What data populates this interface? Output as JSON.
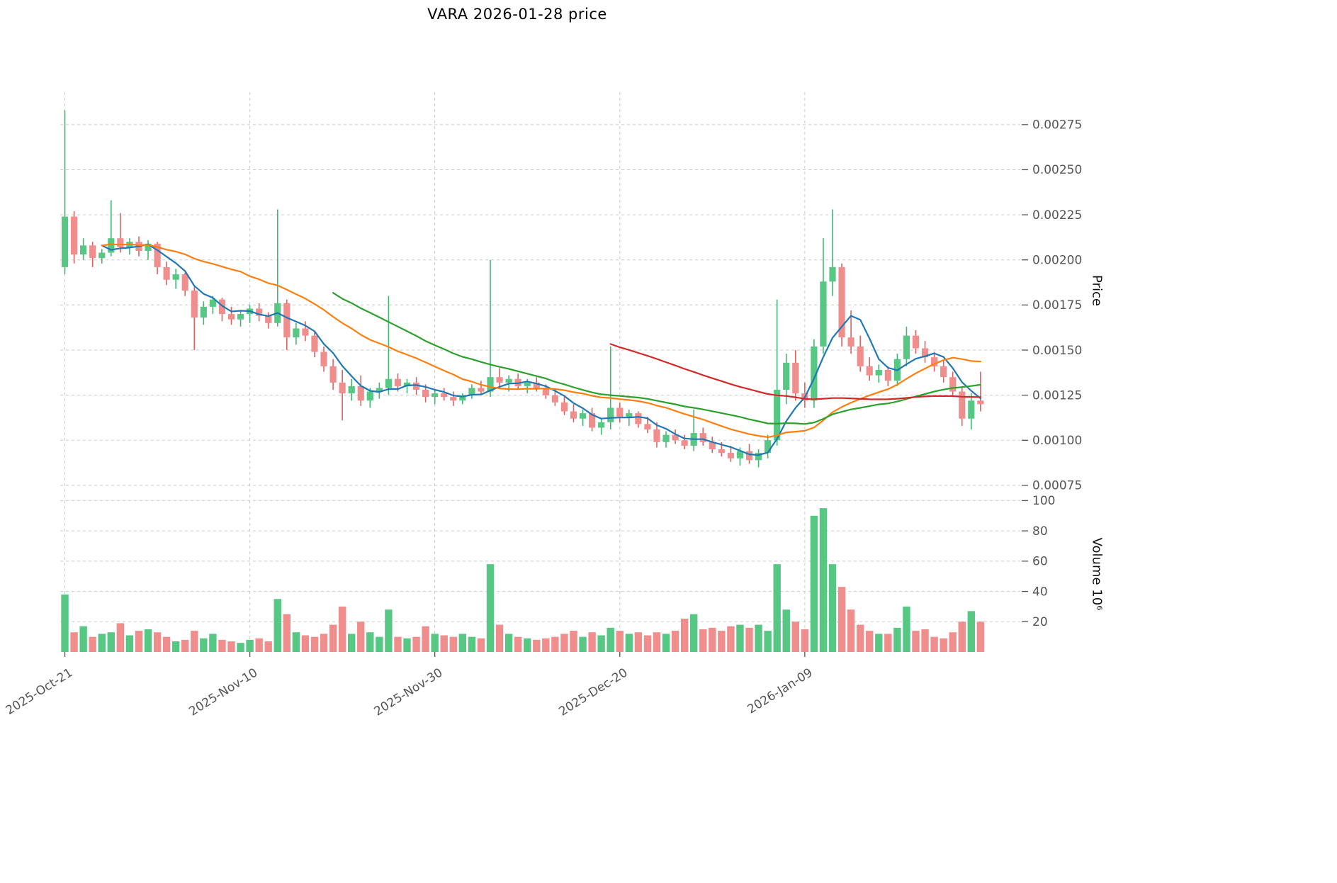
{
  "chart_data": {
    "type": "candlestick",
    "title": "VARA  2026-01-28  price",
    "ylabel": "Price",
    "ylabel2": "Volume  10⁶",
    "grid": true,
    "legend": "none",
    "xlim": [
      -0.5,
      103.3
    ],
    "ylim_price": [
      0.00073,
      0.00293
    ],
    "ylim_volume": [
      0,
      103
    ],
    "x_ticks": [
      {
        "index": 0,
        "label": "2025-Oct-21"
      },
      {
        "index": 20,
        "label": "2025-Nov-10"
      },
      {
        "index": 40,
        "label": "2025-Nov-30"
      },
      {
        "index": 60,
        "label": "2025-Dec-20"
      },
      {
        "index": 80,
        "label": "2026-Jan-09"
      }
    ],
    "y_ticks_price": [
      {
        "value": 0.00075,
        "label": "0.00075"
      },
      {
        "value": 0.001,
        "label": "0.00100"
      },
      {
        "value": 0.00125,
        "label": "0.00125"
      },
      {
        "value": 0.0015,
        "label": "0.00150"
      },
      {
        "value": 0.00175,
        "label": "0.00175"
      },
      {
        "value": 0.002,
        "label": "0.00200"
      },
      {
        "value": 0.00225,
        "label": "0.00225"
      },
      {
        "value": 0.0025,
        "label": "0.00250"
      },
      {
        "value": 0.00275,
        "label": "0.00275"
      }
    ],
    "y_ticks_volume": [
      {
        "value": 20,
        "label": "20"
      },
      {
        "value": 40,
        "label": "40"
      },
      {
        "value": 60,
        "label": "60"
      },
      {
        "value": 80,
        "label": "80"
      },
      {
        "value": 100,
        "label": "100"
      }
    ],
    "colors": {
      "up": "#57c784",
      "down": "#f08e8e",
      "wick_up": "#3fb873",
      "wick_down": "#e06060",
      "grid": "#c9c9c9",
      "tick_text": "#555555",
      "ma_fast": "#1f77b4",
      "ma_mid": "#ff7f0e",
      "ma_slow": "#2ca02c",
      "ma_long": "#d62728"
    },
    "moving_averages": [
      {
        "name": "ma-fast",
        "window": 5,
        "min_periods": 5,
        "color": "#1f77b4"
      },
      {
        "name": "ma-mid",
        "window": 20,
        "min_periods": 5,
        "color": "#ff7f0e"
      },
      {
        "name": "ma-slow",
        "window": 30,
        "min_periods": 30,
        "color": "#2ca02c"
      },
      {
        "name": "ma-long",
        "window": 60,
        "min_periods": 60,
        "color": "#d62728"
      }
    ],
    "candles": {
      "open": [
        0.00196,
        0.00224,
        0.00203,
        0.00208,
        0.00201,
        0.00204,
        0.00212,
        0.00207,
        0.0021,
        0.00205,
        0.00209,
        0.00196,
        0.00189,
        0.00192,
        0.00183,
        0.00168,
        0.00174,
        0.00178,
        0.0017,
        0.00167,
        0.0017,
        0.00173,
        0.00169,
        0.00165,
        0.00176,
        0.00157,
        0.00162,
        0.00158,
        0.00149,
        0.00141,
        0.00132,
        0.00126,
        0.0013,
        0.00122,
        0.00127,
        0.00129,
        0.00134,
        0.0013,
        0.00132,
        0.00128,
        0.00124,
        0.00126,
        0.00124,
        0.00122,
        0.00125,
        0.00129,
        0.00127,
        0.00135,
        0.00132,
        0.00134,
        0.0013,
        0.00132,
        0.00129,
        0.00125,
        0.00121,
        0.00116,
        0.00112,
        0.00115,
        0.00107,
        0.0011,
        0.00118,
        0.00113,
        0.00115,
        0.00109,
        0.00106,
        0.00099,
        0.00103,
        0.001,
        0.00097,
        0.00104,
        0.00099,
        0.00095,
        0.00093,
        0.0009,
        0.00094,
        0.00089,
        0.00093,
        0.001,
        0.00128,
        0.00143,
        0.00126,
        0.00122,
        0.00152,
        0.00188,
        0.00196,
        0.00157,
        0.00152,
        0.00141,
        0.00136,
        0.00139,
        0.00133,
        0.00145,
        0.00158,
        0.00151,
        0.00146,
        0.00141,
        0.00135,
        0.00127,
        0.00112,
        0.00122
      ],
      "high": [
        0.00283,
        0.00227,
        0.00212,
        0.0021,
        0.00206,
        0.00233,
        0.00226,
        0.00212,
        0.00213,
        0.00211,
        0.0021,
        0.00199,
        0.00195,
        0.00193,
        0.00185,
        0.00177,
        0.0018,
        0.00179,
        0.00174,
        0.00172,
        0.00175,
        0.00176,
        0.00171,
        0.00228,
        0.00178,
        0.00165,
        0.00166,
        0.0016,
        0.00152,
        0.00145,
        0.00139,
        0.00134,
        0.00136,
        0.00129,
        0.00132,
        0.0018,
        0.00137,
        0.00134,
        0.00135,
        0.00131,
        0.00128,
        0.00129,
        0.00127,
        0.00126,
        0.00131,
        0.00133,
        0.002,
        0.0014,
        0.00136,
        0.00137,
        0.00134,
        0.00135,
        0.00131,
        0.00128,
        0.00124,
        0.0012,
        0.00117,
        0.00118,
        0.00112,
        0.00152,
        0.00121,
        0.00117,
        0.00116,
        0.00113,
        0.0011,
        0.00105,
        0.00106,
        0.00103,
        0.00117,
        0.00107,
        0.00102,
        0.00099,
        0.00097,
        0.00096,
        0.00098,
        0.00095,
        0.00103,
        0.00178,
        0.00148,
        0.0015,
        0.00132,
        0.00156,
        0.00212,
        0.00228,
        0.00198,
        0.00172,
        0.00158,
        0.00146,
        0.00142,
        0.00141,
        0.00148,
        0.00163,
        0.00161,
        0.00155,
        0.00149,
        0.00144,
        0.00138,
        0.0013,
        0.00126,
        0.00138
      ],
      "low": [
        0.00192,
        0.00198,
        0.002,
        0.00196,
        0.00198,
        0.00202,
        0.00204,
        0.00203,
        0.00202,
        0.002,
        0.00192,
        0.00186,
        0.00184,
        0.0018,
        0.0015,
        0.00164,
        0.0017,
        0.00166,
        0.00164,
        0.00163,
        0.00165,
        0.00166,
        0.00162,
        0.00163,
        0.0015,
        0.00153,
        0.00155,
        0.00146,
        0.00138,
        0.00128,
        0.00111,
        0.00122,
        0.00119,
        0.00118,
        0.00123,
        0.00125,
        0.00127,
        0.00126,
        0.00125,
        0.00121,
        0.0012,
        0.00122,
        0.00119,
        0.0012,
        0.00123,
        0.00125,
        0.00124,
        0.00129,
        0.00127,
        0.00128,
        0.00126,
        0.00127,
        0.00123,
        0.00119,
        0.00114,
        0.0011,
        0.00108,
        0.00105,
        0.00103,
        0.00106,
        0.0011,
        0.00108,
        0.00107,
        0.00104,
        0.00096,
        0.00096,
        0.00098,
        0.00095,
        0.00094,
        0.00097,
        0.00093,
        0.00091,
        0.00088,
        0.00086,
        0.00087,
        0.00085,
        0.0009,
        0.00097,
        0.0012,
        0.00122,
        0.00118,
        0.00118,
        0.00148,
        0.0018,
        0.00152,
        0.00148,
        0.00138,
        0.00133,
        0.00132,
        0.0013,
        0.0013,
        0.00141,
        0.00148,
        0.00143,
        0.00138,
        0.00132,
        0.00124,
        0.00108,
        0.00106,
        0.00116
      ],
      "close": [
        0.00224,
        0.00203,
        0.00208,
        0.00201,
        0.00204,
        0.00212,
        0.00207,
        0.0021,
        0.00205,
        0.00209,
        0.00196,
        0.00189,
        0.00192,
        0.00183,
        0.00168,
        0.00174,
        0.00178,
        0.0017,
        0.00167,
        0.0017,
        0.00173,
        0.00169,
        0.00165,
        0.00176,
        0.00157,
        0.00162,
        0.00158,
        0.00149,
        0.00141,
        0.00132,
        0.00126,
        0.0013,
        0.00122,
        0.00127,
        0.00129,
        0.00134,
        0.0013,
        0.00132,
        0.00128,
        0.00124,
        0.00126,
        0.00124,
        0.00122,
        0.00125,
        0.00129,
        0.00127,
        0.00135,
        0.00132,
        0.00134,
        0.0013,
        0.00132,
        0.00129,
        0.00125,
        0.00121,
        0.00116,
        0.00112,
        0.00115,
        0.00107,
        0.0011,
        0.00118,
        0.00113,
        0.00115,
        0.00109,
        0.00106,
        0.00099,
        0.00103,
        0.001,
        0.00097,
        0.00104,
        0.00099,
        0.00095,
        0.00093,
        0.0009,
        0.00094,
        0.00089,
        0.00093,
        0.001,
        0.00128,
        0.00143,
        0.00126,
        0.00122,
        0.00152,
        0.00188,
        0.00196,
        0.00157,
        0.00152,
        0.00141,
        0.00136,
        0.00139,
        0.00133,
        0.00145,
        0.00158,
        0.00151,
        0.00146,
        0.00141,
        0.00135,
        0.00127,
        0.00112,
        0.00122,
        0.0012
      ],
      "volume_millions": [
        38,
        13,
        17,
        10,
        12,
        13,
        19,
        11,
        14,
        15,
        13,
        10,
        7,
        8,
        14,
        9,
        12,
        8,
        7,
        6,
        8,
        9,
        7,
        35,
        25,
        13,
        11,
        10,
        12,
        18,
        30,
        12,
        20,
        13,
        10,
        28,
        10,
        9,
        10,
        17,
        12,
        11,
        10,
        12,
        10,
        9,
        58,
        18,
        12,
        10,
        9,
        8,
        9,
        10,
        12,
        14,
        10,
        13,
        11,
        16,
        14,
        12,
        13,
        11,
        13,
        12,
        14,
        22,
        25,
        15,
        16,
        14,
        17,
        18,
        16,
        18,
        14,
        58,
        28,
        20,
        15,
        90,
        95,
        58,
        43,
        28,
        18,
        14,
        12,
        12,
        16,
        30,
        14,
        15,
        10,
        9,
        13,
        20,
        27,
        20
      ]
    }
  }
}
